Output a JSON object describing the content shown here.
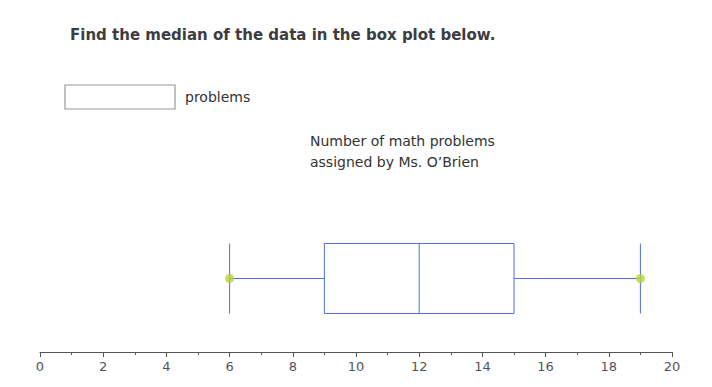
{
  "chart_data": {
    "type": "boxplot",
    "title": "Find the median of the data in the box plot below.",
    "subtitle": "Number of math problems\nassigned by Ms. O’Brien",
    "annotations": [
      "problems"
    ],
    "min": 6,
    "q1": 9,
    "median": 12,
    "q3": 15,
    "max": 19,
    "xlim": [
      0,
      20
    ],
    "xticks": [
      0,
      2,
      4,
      6,
      8,
      10,
      12,
      14,
      16,
      18,
      20
    ],
    "tick_labels": "x",
    "grid": false
  }
}
